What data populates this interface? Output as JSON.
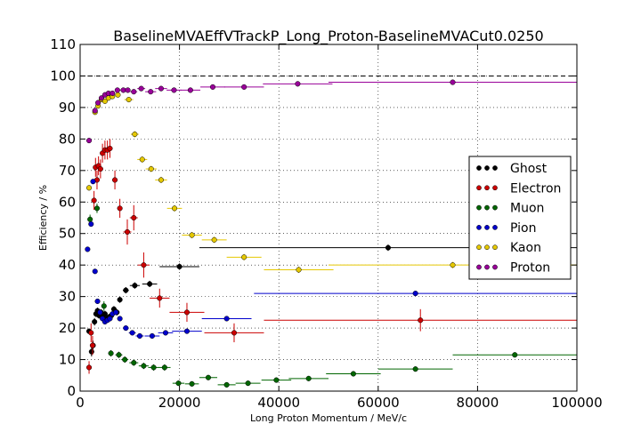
{
  "chart_data": {
    "type": "scatter",
    "title": "BaselineMVAEffVTrackP_Long_Proton-BaselineMVACut0.0250",
    "xlabel": "Long Proton Momentum / MeV/c",
    "ylabel": "Efficiency / %",
    "xlim": [
      0,
      100000
    ],
    "ylim": [
      0,
      110
    ],
    "xticks": [
      0,
      20000,
      40000,
      60000,
      80000,
      100000
    ],
    "yticks": [
      0,
      10,
      20,
      30,
      40,
      50,
      60,
      70,
      80,
      90,
      100,
      110
    ],
    "grid": true,
    "reference_line": 100,
    "legend_position": "right",
    "series": [
      {
        "name": "Ghost",
        "color": "#000000",
        "points": [
          {
            "x": 1800,
            "y": 19,
            "xerr": 300,
            "yerr": 0.8
          },
          {
            "x": 2300,
            "y": 12.5,
            "xerr": 200,
            "yerr": 1.5
          },
          {
            "x": 2600,
            "y": 14.5,
            "xerr": 200,
            "yerr": 1.5
          },
          {
            "x": 2900,
            "y": 22,
            "xerr": 200,
            "yerr": 1.2
          },
          {
            "x": 3200,
            "y": 24.5,
            "xerr": 200,
            "yerr": 1
          },
          {
            "x": 3500,
            "y": 25.5,
            "xerr": 200,
            "yerr": 1
          },
          {
            "x": 3800,
            "y": 24,
            "xerr": 200,
            "yerr": 1
          },
          {
            "x": 4200,
            "y": 25,
            "xerr": 200,
            "yerr": 1
          },
          {
            "x": 4600,
            "y": 24,
            "xerr": 200,
            "yerr": 1
          },
          {
            "x": 5000,
            "y": 24.5,
            "xerr": 200,
            "yerr": 1
          },
          {
            "x": 5400,
            "y": 23,
            "xerr": 200,
            "yerr": 1
          },
          {
            "x": 5800,
            "y": 23.5,
            "xerr": 200,
            "yerr": 1
          },
          {
            "x": 6300,
            "y": 24,
            "xerr": 250,
            "yerr": 1
          },
          {
            "x": 6800,
            "y": 26,
            "xerr": 250,
            "yerr": 1
          },
          {
            "x": 7400,
            "y": 25,
            "xerr": 300,
            "yerr": 1
          },
          {
            "x": 8000,
            "y": 29,
            "xerr": 400,
            "yerr": 1
          },
          {
            "x": 9200,
            "y": 32,
            "xerr": 600,
            "yerr": 1
          },
          {
            "x": 11000,
            "y": 33.5,
            "xerr": 1000,
            "yerr": 1
          },
          {
            "x": 14000,
            "y": 34,
            "xerr": 1500,
            "yerr": 1
          },
          {
            "x": 20000,
            "y": 39.5,
            "xerr": 4000,
            "yerr": 1
          },
          {
            "x": 62000,
            "y": 45.5,
            "xerr": 38000,
            "yerr": 1
          }
        ]
      },
      {
        "name": "Electron",
        "color": "#cc0000",
        "points": [
          {
            "x": 1800,
            "y": 7.5,
            "xerr": 300,
            "yerr": 2
          },
          {
            "x": 2200,
            "y": 18.5,
            "xerr": 200,
            "yerr": 3
          },
          {
            "x": 2500,
            "y": 14.5,
            "xerr": 200,
            "yerr": 3
          },
          {
            "x": 2800,
            "y": 60.5,
            "xerr": 200,
            "yerr": 3
          },
          {
            "x": 3100,
            "y": 71,
            "xerr": 200,
            "yerr": 3
          },
          {
            "x": 3400,
            "y": 67,
            "xerr": 200,
            "yerr": 3
          },
          {
            "x": 3700,
            "y": 71.5,
            "xerr": 200,
            "yerr": 3
          },
          {
            "x": 4100,
            "y": 70.5,
            "xerr": 200,
            "yerr": 3
          },
          {
            "x": 4500,
            "y": 75.5,
            "xerr": 200,
            "yerr": 3
          },
          {
            "x": 5000,
            "y": 76.5,
            "xerr": 250,
            "yerr": 3
          },
          {
            "x": 5500,
            "y": 76.5,
            "xerr": 250,
            "yerr": 3
          },
          {
            "x": 6000,
            "y": 77,
            "xerr": 250,
            "yerr": 3
          },
          {
            "x": 7000,
            "y": 67,
            "xerr": 500,
            "yerr": 3
          },
          {
            "x": 8000,
            "y": 58,
            "xerr": 500,
            "yerr": 3
          },
          {
            "x": 9500,
            "y": 50.5,
            "xerr": 800,
            "yerr": 4
          },
          {
            "x": 10800,
            "y": 55,
            "xerr": 800,
            "yerr": 4
          },
          {
            "x": 12800,
            "y": 40,
            "xerr": 1200,
            "yerr": 4
          },
          {
            "x": 16000,
            "y": 29.5,
            "xerr": 2000,
            "yerr": 3
          },
          {
            "x": 21500,
            "y": 25,
            "xerr": 3500,
            "yerr": 3
          },
          {
            "x": 31000,
            "y": 18.5,
            "xerr": 6000,
            "yerr": 3
          },
          {
            "x": 68500,
            "y": 22.5,
            "xerr": 31500,
            "yerr": 3.5
          }
        ]
      },
      {
        "name": "Muon",
        "color": "#006600",
        "points": [
          {
            "x": 2000,
            "y": 54.5,
            "xerr": 300,
            "yerr": 1.5
          },
          {
            "x": 3400,
            "y": 58,
            "xerr": 300,
            "yerr": 1.5
          },
          {
            "x": 4800,
            "y": 27,
            "xerr": 400,
            "yerr": 1.5
          },
          {
            "x": 6200,
            "y": 12,
            "xerr": 500,
            "yerr": 1
          },
          {
            "x": 7800,
            "y": 11.5,
            "xerr": 700,
            "yerr": 1
          },
          {
            "x": 9000,
            "y": 10,
            "xerr": 700,
            "yerr": 1
          },
          {
            "x": 10800,
            "y": 9,
            "xerr": 900,
            "yerr": 1
          },
          {
            "x": 12800,
            "y": 8,
            "xerr": 1000,
            "yerr": 1
          },
          {
            "x": 14800,
            "y": 7.5,
            "xerr": 1100,
            "yerr": 1
          },
          {
            "x": 17000,
            "y": 7.5,
            "xerr": 1200,
            "yerr": 1
          },
          {
            "x": 19800,
            "y": 2.5,
            "xerr": 1200,
            "yerr": 0.8
          },
          {
            "x": 22500,
            "y": 2.3,
            "xerr": 1400,
            "yerr": 0.8
          },
          {
            "x": 25800,
            "y": 4.3,
            "xerr": 1800,
            "yerr": 0.8
          },
          {
            "x": 29500,
            "y": 2,
            "xerr": 1800,
            "yerr": 0.8
          },
          {
            "x": 33800,
            "y": 2.5,
            "xerr": 2500,
            "yerr": 0.8
          },
          {
            "x": 39500,
            "y": 3.5,
            "xerr": 3000,
            "yerr": 0.8
          },
          {
            "x": 46000,
            "y": 4,
            "xerr": 4000,
            "yerr": 0.8
          },
          {
            "x": 55000,
            "y": 5.5,
            "xerr": 5500,
            "yerr": 0.8
          },
          {
            "x": 67500,
            "y": 7,
            "xerr": 7500,
            "yerr": 0.8
          },
          {
            "x": 87500,
            "y": 11.5,
            "xerr": 12500,
            "yerr": 0.8
          }
        ]
      },
      {
        "name": "Pion",
        "color": "#0000cc",
        "points": [
          {
            "x": 1500,
            "y": 45,
            "xerr": 200,
            "yerr": 0.5
          },
          {
            "x": 2200,
            "y": 53,
            "xerr": 200,
            "yerr": 0.5
          },
          {
            "x": 2600,
            "y": 66.5,
            "xerr": 200,
            "yerr": 0.5
          },
          {
            "x": 3000,
            "y": 38,
            "xerr": 200,
            "yerr": 0.5
          },
          {
            "x": 3500,
            "y": 28.5,
            "xerr": 200,
            "yerr": 0.5
          },
          {
            "x": 4000,
            "y": 25,
            "xerr": 200,
            "yerr": 0.5
          },
          {
            "x": 4500,
            "y": 23,
            "xerr": 200,
            "yerr": 0.5
          },
          {
            "x": 5000,
            "y": 22,
            "xerr": 200,
            "yerr": 0.5
          },
          {
            "x": 5500,
            "y": 22.5,
            "xerr": 200,
            "yerr": 0.5
          },
          {
            "x": 6000,
            "y": 23,
            "xerr": 250,
            "yerr": 0.5
          },
          {
            "x": 6500,
            "y": 24.5,
            "xerr": 250,
            "yerr": 0.5
          },
          {
            "x": 7200,
            "y": 25,
            "xerr": 300,
            "yerr": 0.5
          },
          {
            "x": 8000,
            "y": 23,
            "xerr": 400,
            "yerr": 0.5
          },
          {
            "x": 9200,
            "y": 20,
            "xerr": 600,
            "yerr": 0.5
          },
          {
            "x": 10500,
            "y": 18.5,
            "xerr": 700,
            "yerr": 0.5
          },
          {
            "x": 12000,
            "y": 17.5,
            "xerr": 800,
            "yerr": 0.5
          },
          {
            "x": 14500,
            "y": 17.5,
            "xerr": 1500,
            "yerr": 0.5
          },
          {
            "x": 17200,
            "y": 18.5,
            "xerr": 1500,
            "yerr": 0.5
          },
          {
            "x": 21500,
            "y": 19,
            "xerr": 3000,
            "yerr": 0.5
          },
          {
            "x": 29500,
            "y": 23,
            "xerr": 5000,
            "yerr": 0.5
          },
          {
            "x": 67500,
            "y": 31,
            "xerr": 32500,
            "yerr": 0.5
          }
        ]
      },
      {
        "name": "Kaon",
        "color": "#e5c800",
        "points": [
          {
            "x": 1800,
            "y": 64.5,
            "xerr": 300,
            "yerr": 0.8
          },
          {
            "x": 3000,
            "y": 88.5,
            "xerr": 300,
            "yerr": 0.8
          },
          {
            "x": 3600,
            "y": 90.5,
            "xerr": 300,
            "yerr": 0.8
          },
          {
            "x": 4300,
            "y": 92.5,
            "xerr": 300,
            "yerr": 0.8
          },
          {
            "x": 5000,
            "y": 92,
            "xerr": 300,
            "yerr": 0.8
          },
          {
            "x": 5700,
            "y": 93,
            "xerr": 300,
            "yerr": 0.8
          },
          {
            "x": 6500,
            "y": 93.5,
            "xerr": 400,
            "yerr": 0.8
          },
          {
            "x": 7600,
            "y": 94,
            "xerr": 500,
            "yerr": 0.8
          },
          {
            "x": 9800,
            "y": 92.5,
            "xerr": 900,
            "yerr": 0.8
          },
          {
            "x": 11000,
            "y": 81.5,
            "xerr": 800,
            "yerr": 1
          },
          {
            "x": 12500,
            "y": 73.5,
            "xerr": 1000,
            "yerr": 1
          },
          {
            "x": 14300,
            "y": 70.5,
            "xerr": 1100,
            "yerr": 1
          },
          {
            "x": 16300,
            "y": 67,
            "xerr": 1200,
            "yerr": 1
          },
          {
            "x": 19000,
            "y": 58,
            "xerr": 1500,
            "yerr": 1
          },
          {
            "x": 22500,
            "y": 49.5,
            "xerr": 2000,
            "yerr": 1
          },
          {
            "x": 27000,
            "y": 48,
            "xerr": 2500,
            "yerr": 1
          },
          {
            "x": 33000,
            "y": 42.5,
            "xerr": 3500,
            "yerr": 1
          },
          {
            "x": 44000,
            "y": 38.5,
            "xerr": 7000,
            "yerr": 1
          },
          {
            "x": 75000,
            "y": 40,
            "xerr": 25000,
            "yerr": 1
          }
        ]
      },
      {
        "name": "Proton",
        "color": "#990099",
        "points": [
          {
            "x": 1800,
            "y": 79.5,
            "xerr": 300,
            "yerr": 0.8
          },
          {
            "x": 3000,
            "y": 89,
            "xerr": 300,
            "yerr": 0.8
          },
          {
            "x": 3600,
            "y": 91.5,
            "xerr": 300,
            "yerr": 0.8
          },
          {
            "x": 4300,
            "y": 93,
            "xerr": 300,
            "yerr": 0.8
          },
          {
            "x": 5000,
            "y": 94,
            "xerr": 300,
            "yerr": 0.8
          },
          {
            "x": 5700,
            "y": 94.5,
            "xerr": 300,
            "yerr": 0.8
          },
          {
            "x": 6500,
            "y": 94.5,
            "xerr": 400,
            "yerr": 0.8
          },
          {
            "x": 7500,
            "y": 95.5,
            "xerr": 500,
            "yerr": 0.8
          },
          {
            "x": 8700,
            "y": 95.5,
            "xerr": 600,
            "yerr": 0.8
          },
          {
            "x": 9600,
            "y": 95.5,
            "xerr": 500,
            "yerr": 0.8
          },
          {
            "x": 10800,
            "y": 95,
            "xerr": 700,
            "yerr": 0.8
          },
          {
            "x": 12300,
            "y": 96,
            "xerr": 800,
            "yerr": 0.8
          },
          {
            "x": 14200,
            "y": 95,
            "xerr": 1100,
            "yerr": 0.8
          },
          {
            "x": 16300,
            "y": 96,
            "xerr": 1200,
            "yerr": 0.8
          },
          {
            "x": 18900,
            "y": 95.5,
            "xerr": 1500,
            "yerr": 0.8
          },
          {
            "x": 22200,
            "y": 95.5,
            "xerr": 2000,
            "yerr": 0.8
          },
          {
            "x": 26700,
            "y": 96.5,
            "xerr": 2500,
            "yerr": 0.8
          },
          {
            "x": 33000,
            "y": 96.5,
            "xerr": 4000,
            "yerr": 0.8
          },
          {
            "x": 43800,
            "y": 97.5,
            "xerr": 7000,
            "yerr": 0.8
          },
          {
            "x": 75000,
            "y": 98,
            "xerr": 25000,
            "yerr": 0.8
          }
        ]
      }
    ]
  }
}
